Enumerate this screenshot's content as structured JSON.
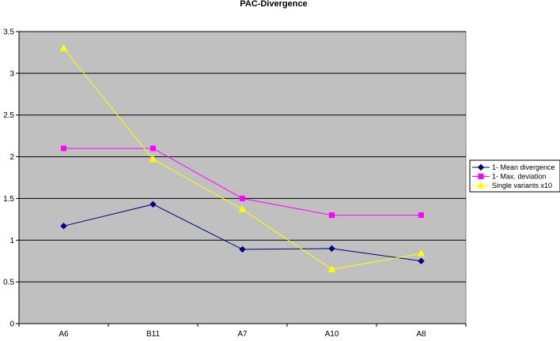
{
  "chart_data": {
    "type": "line",
    "title": "PAC-Divergence",
    "xlabel": "",
    "ylabel": "",
    "categories": [
      "A6",
      "B11",
      "A7",
      "A10",
      "A8"
    ],
    "ylim": [
      0,
      3.5
    ],
    "yticks": [
      "0",
      "0.5",
      "1",
      "1.5",
      "2",
      "2.5",
      "3",
      "3.5"
    ],
    "grid": true,
    "plot_background": "#c0c0c0",
    "legend_position": "right",
    "series": [
      {
        "name": "1- Mean divergence",
        "color": "#000080",
        "marker": "diamond",
        "values": [
          1.17,
          1.43,
          0.89,
          0.9,
          0.75
        ]
      },
      {
        "name": "1- Max. deviation",
        "color": "#ff00ff",
        "marker": "square",
        "values": [
          2.1,
          2.1,
          1.5,
          1.3,
          1.3
        ]
      },
      {
        "name": "Single variants x10",
        "color": "#ffff00",
        "marker": "triangle",
        "values": [
          3.3,
          1.97,
          1.37,
          0.65,
          0.84
        ]
      }
    ]
  }
}
